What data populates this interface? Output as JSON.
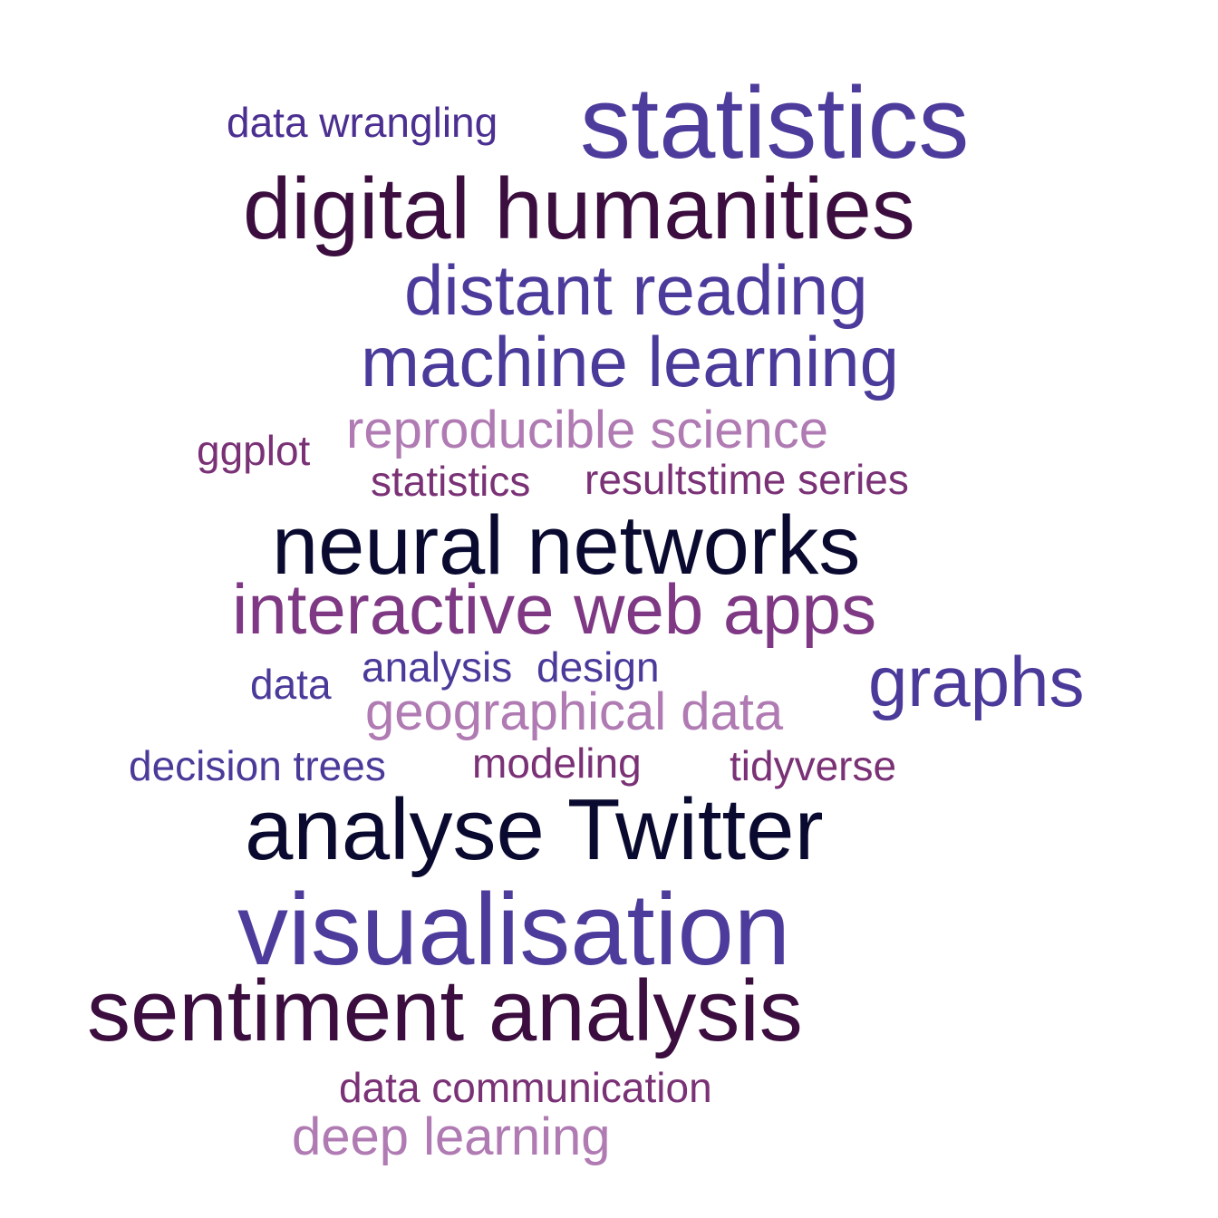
{
  "words": [
    {
      "text": "data wrangling",
      "color": "#4b2f91"
    },
    {
      "text": "statistics",
      "color": "#4e3c9c"
    },
    {
      "text": "digital humanities",
      "color": "#3b0e3f"
    },
    {
      "text": "distant reading",
      "color": "#4d3b9c"
    },
    {
      "text": "machine learning",
      "color": "#4a3a9a"
    },
    {
      "text": "ggplot",
      "color": "#7a3176"
    },
    {
      "text": "reproducible science",
      "color": "#b07ab3"
    },
    {
      "text": "statistics",
      "color": "#7a3176"
    },
    {
      "text": "resultstime series",
      "color": "#7a3176"
    },
    {
      "text": "neural networks",
      "color": "#0a0a30"
    },
    {
      "text": "interactive web apps",
      "color": "#7e3884"
    },
    {
      "text": "data",
      "color": "#4b3a9a"
    },
    {
      "text": "analysis",
      "color": "#4b3a9a"
    },
    {
      "text": "design",
      "color": "#4b3a9a"
    },
    {
      "text": "graphs",
      "color": "#4b3a9a"
    },
    {
      "text": "geographical data",
      "color": "#b07ab3"
    },
    {
      "text": "decision trees",
      "color": "#4b3a9a"
    },
    {
      "text": "modeling",
      "color": "#7a3176"
    },
    {
      "text": "tidyverse",
      "color": "#7a3176"
    },
    {
      "text": "analyse Twitter",
      "color": "#0a0a30"
    },
    {
      "text": "visualisation",
      "color": "#4e3c9c"
    },
    {
      "text": "sentiment analysis",
      "color": "#3b0e3f"
    },
    {
      "text": "data communication",
      "color": "#7a3176"
    },
    {
      "text": "deep learning",
      "color": "#b07ab3"
    }
  ]
}
